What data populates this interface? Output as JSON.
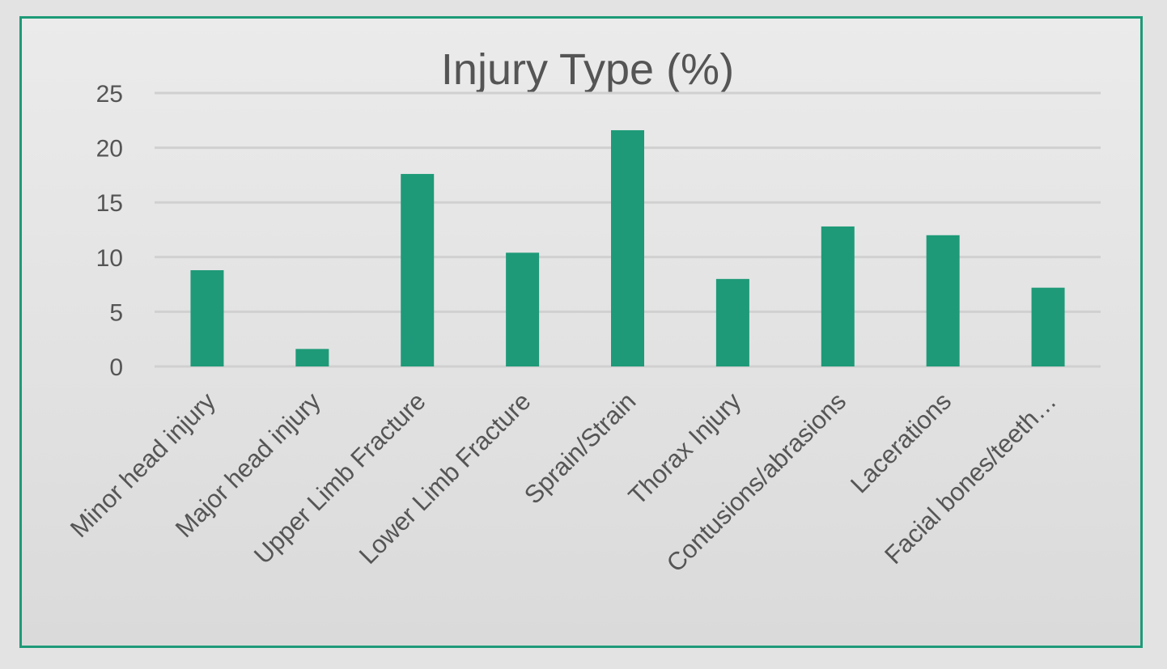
{
  "chart_data": {
    "type": "bar",
    "title": "Injury Type (%)",
    "xlabel": "",
    "ylabel": "",
    "ylim": [
      0,
      25
    ],
    "yticks": [
      0,
      5,
      10,
      15,
      20,
      25
    ],
    "grid": true,
    "legend": "none",
    "bar_color": "#1e9a78",
    "frame_color": "#1e9a78",
    "categories": [
      "Minor head injury",
      "Major head injury",
      "Upper Limb Fracture",
      "Lower Limb Fracture",
      "Sprain/Strain",
      "Thorax Injury",
      "Contusions/abrasions",
      "Lacerations",
      "Facial bones/teeth…"
    ],
    "values": [
      8.8,
      1.6,
      17.6,
      10.4,
      21.6,
      8.0,
      12.8,
      12.0,
      7.2
    ]
  }
}
